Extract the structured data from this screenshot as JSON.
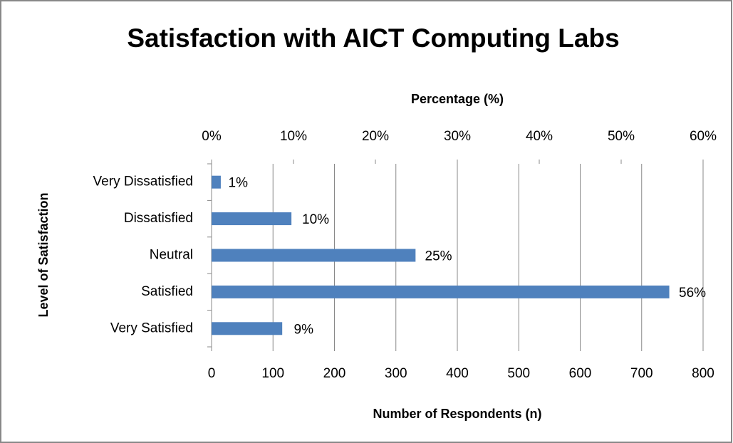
{
  "chart_data": {
    "type": "bar",
    "orientation": "horizontal",
    "title": "Satisfaction with AICT Computing Labs",
    "x_label": "Number of Respondents (n)",
    "x2_label": "Percentage (%)",
    "y_label": "Level  of Satisfaction",
    "categories": [
      "Very Dissatisfied",
      "Dissatisfied",
      "Neutral",
      "Satisfied",
      "Very Satisfied"
    ],
    "values": [
      15,
      130,
      332,
      745,
      115
    ],
    "percent_values": [
      1,
      10,
      25,
      56,
      9
    ],
    "value_labels": [
      "1%",
      "10%",
      "25%",
      "56%",
      "9%"
    ],
    "color": "#4f81bd",
    "xlim": [
      0,
      800
    ],
    "xticks": [
      0,
      100,
      200,
      300,
      400,
      500,
      600,
      700,
      800
    ],
    "x2lim": [
      0,
      60
    ],
    "x2ticks": [
      {
        "value": 0,
        "label": "0%"
      },
      {
        "value": 10,
        "label": "10%"
      },
      {
        "value": 20,
        "label": "20%"
      },
      {
        "value": 30,
        "label": "30%"
      },
      {
        "value": 40,
        "label": "40%"
      },
      {
        "value": 50,
        "label": "50%"
      },
      {
        "value": 60,
        "label": "60%"
      }
    ],
    "grid": true
  }
}
